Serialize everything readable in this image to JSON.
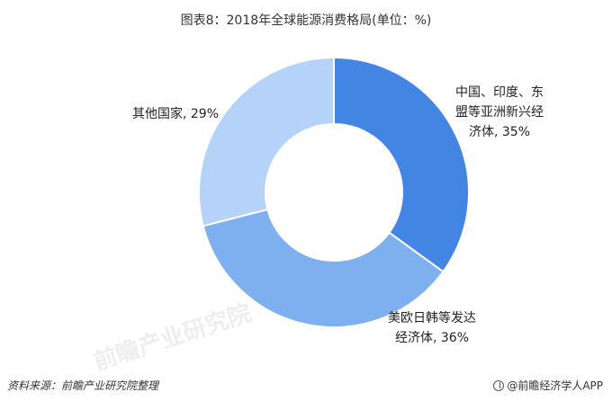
{
  "title": "图表8：2018年全球能源消费格局(单位：%)",
  "chart_data": {
    "type": "pie",
    "donut": true,
    "slices": [
      {
        "label_line1": "中国、印度、东",
        "label_line2": "盟等亚洲新兴经",
        "label_line3": "济体, 35%",
        "value": 35,
        "color": "#4285e3"
      },
      {
        "label_line1": "美欧日韩等发达",
        "label_line2": "经济体, 36%",
        "value": 36,
        "color": "#7eb0ef"
      },
      {
        "label_line1": "其他国家, 29%",
        "value": 29,
        "color": "#b5d3f8"
      }
    ]
  },
  "watermark": "前瞻产业研究院",
  "source": "资料来源：前瞻产业研究院整理",
  "brand": {
    "text": "@前瞻经济学人APP",
    "icon": "brand-logo-icon"
  }
}
